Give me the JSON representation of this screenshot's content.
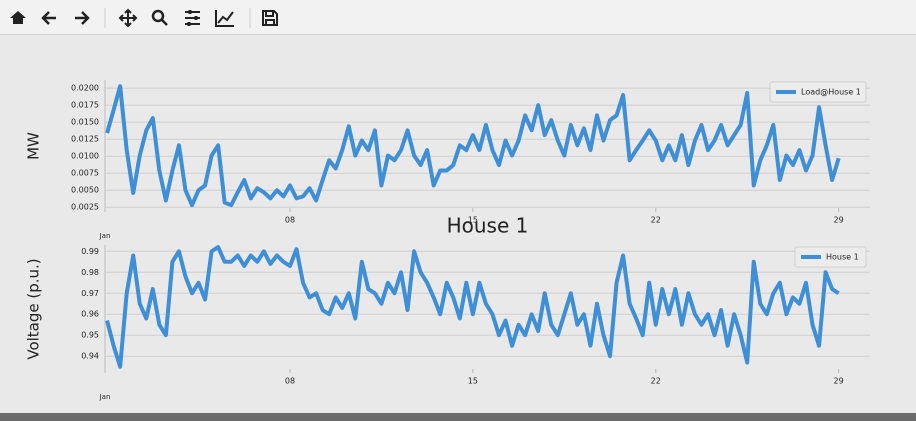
{
  "chart_data": [
    {
      "type": "line",
      "ylabel": "MW",
      "x_offset_text": "Jan",
      "legend": "upper right",
      "grid": true,
      "xlim": [
        0.92,
        30.2
      ],
      "xticks": [
        {
          "value": 8,
          "label": "08"
        },
        15,
        22,
        29
      ],
      "ylim": [
        0.0018,
        0.0212
      ],
      "yticks": [
        0.0025,
        {
          "value": 0.005,
          "label": "0.0050"
        },
        0.0075,
        {
          "value": 0.01,
          "label": "0.0100"
        },
        0.0125,
        {
          "value": 0.015,
          "label": "0.0150"
        },
        0.0175,
        {
          "value": 0.02,
          "label": "0.0200"
        }
      ],
      "x": [
        1,
        1.25,
        1.5,
        1.75,
        2,
        2.25,
        2.5,
        2.75,
        3,
        3.25,
        3.5,
        3.75,
        4,
        4.25,
        4.5,
        4.75,
        5,
        5.25,
        5.5,
        5.75,
        6,
        6.25,
        6.5,
        6.75,
        7,
        7.25,
        7.5,
        7.75,
        8,
        8.25,
        8.5,
        8.75,
        9,
        9.25,
        9.5,
        9.75,
        10,
        10.25,
        10.5,
        10.75,
        11,
        11.25,
        11.5,
        11.75,
        12,
        12.25,
        12.5,
        12.75,
        13,
        13.25,
        13.5,
        13.75,
        14,
        14.25,
        14.5,
        14.75,
        15,
        15.25,
        15.5,
        15.75,
        16,
        16.25,
        16.5,
        16.75,
        17,
        17.25,
        17.5,
        17.75,
        18,
        18.25,
        18.5,
        18.75,
        19,
        19.25,
        19.5,
        19.75,
        20,
        20.25,
        20.5,
        20.75,
        21,
        21.25,
        21.5,
        21.75,
        22,
        22.25,
        22.5,
        22.75,
        23,
        23.25,
        23.5,
        23.75,
        24,
        24.25,
        24.5,
        24.75,
        25,
        25.25,
        25.5,
        25.75,
        26,
        26.25,
        26.5,
        26.75,
        27,
        27.25,
        27.5,
        27.75,
        28,
        28.25,
        28.5,
        28.75,
        29
      ],
      "series": [
        {
          "name": "Load@House 1",
          "color": "#3f8fd6",
          "values": [
            0.0134,
            0.0168,
            0.0203,
            0.0109,
            0.0046,
            0.0101,
            0.0138,
            0.0156,
            0.0079,
            0.0035,
            0.0079,
            0.0116,
            0.005,
            0.0028,
            0.005,
            0.0057,
            0.0101,
            0.0116,
            0.0032,
            0.0028,
            0.0047,
            0.0065,
            0.0038,
            0.0053,
            0.0047,
            0.0038,
            0.005,
            0.0041,
            0.0057,
            0.0038,
            0.0041,
            0.0053,
            0.0035,
            0.0065,
            0.0094,
            0.0082,
            0.0109,
            0.0144,
            0.0101,
            0.0123,
            0.0109,
            0.0138,
            0.0057,
            0.0101,
            0.0094,
            0.0109,
            0.0138,
            0.0101,
            0.0087,
            0.0109,
            0.0057,
            0.0079,
            0.0079,
            0.0087,
            0.0116,
            0.0109,
            0.0131,
            0.0109,
            0.0146,
            0.0109,
            0.0087,
            0.0123,
            0.0101,
            0.0123,
            0.016,
            0.0138,
            0.0175,
            0.0131,
            0.0153,
            0.0123,
            0.0101,
            0.0146,
            0.0116,
            0.0141,
            0.0109,
            0.016,
            0.0123,
            0.0153,
            0.016,
            0.019,
            0.0094,
            0.0109,
            0.0123,
            0.0138,
            0.0123,
            0.0094,
            0.0116,
            0.0094,
            0.0131,
            0.0087,
            0.0123,
            0.0146,
            0.0109,
            0.0123,
            0.0146,
            0.0116,
            0.0131,
            0.0146,
            0.0193,
            0.0057,
            0.0094,
            0.0116,
            0.0146,
            0.0065,
            0.0101,
            0.0087,
            0.0109,
            0.0079,
            0.0101,
            0.0172,
            0.0116,
            0.0065,
            0.0097
          ]
        }
      ]
    },
    {
      "type": "line",
      "title": "House 1",
      "ylabel": "Voltage (p.u.)",
      "x_offset_text": "Jan",
      "legend": "upper right",
      "grid": true,
      "xlim": [
        0.92,
        30.2
      ],
      "xticks": [
        {
          "value": 8,
          "label": "08"
        },
        15,
        22,
        29
      ],
      "ylim": [
        0.932,
        0.993
      ],
      "yticks": [
        0.94,
        0.95,
        0.96,
        0.97,
        0.98,
        0.99
      ],
      "x": [
        1,
        1.25,
        1.5,
        1.75,
        2,
        2.25,
        2.5,
        2.75,
        3,
        3.25,
        3.5,
        3.75,
        4,
        4.25,
        4.5,
        4.75,
        5,
        5.25,
        5.5,
        5.75,
        6,
        6.25,
        6.5,
        6.75,
        7,
        7.25,
        7.5,
        7.75,
        8,
        8.25,
        8.5,
        8.75,
        9,
        9.25,
        9.5,
        9.75,
        10,
        10.25,
        10.5,
        10.75,
        11,
        11.25,
        11.5,
        11.75,
        12,
        12.25,
        12.5,
        12.75,
        13,
        13.25,
        13.5,
        13.75,
        14,
        14.25,
        14.5,
        14.75,
        15,
        15.25,
        15.5,
        15.75,
        16,
        16.25,
        16.5,
        16.75,
        17,
        17.25,
        17.5,
        17.75,
        18,
        18.25,
        18.5,
        18.75,
        19,
        19.25,
        19.5,
        19.75,
        20,
        20.25,
        20.5,
        20.75,
        21,
        21.25,
        21.5,
        21.75,
        22,
        22.25,
        22.5,
        22.75,
        23,
        23.25,
        23.5,
        23.75,
        24,
        24.25,
        24.5,
        24.75,
        25,
        25.25,
        25.5,
        25.75,
        26,
        26.25,
        26.5,
        26.75,
        27,
        27.25,
        27.5,
        27.75,
        28,
        28.25,
        28.5,
        28.75,
        29
      ],
      "series": [
        {
          "name": "House 1",
          "color": "#3f8fd6",
          "values": [
            0.957,
            0.945,
            0.935,
            0.97,
            0.988,
            0.965,
            0.958,
            0.972,
            0.955,
            0.95,
            0.985,
            0.99,
            0.978,
            0.97,
            0.975,
            0.967,
            0.99,
            0.992,
            0.985,
            0.985,
            0.988,
            0.983,
            0.988,
            0.985,
            0.99,
            0.984,
            0.988,
            0.985,
            0.983,
            0.991,
            0.975,
            0.968,
            0.97,
            0.962,
            0.96,
            0.968,
            0.963,
            0.97,
            0.958,
            0.985,
            0.972,
            0.97,
            0.965,
            0.975,
            0.97,
            0.98,
            0.962,
            0.99,
            0.98,
            0.975,
            0.968,
            0.96,
            0.975,
            0.968,
            0.958,
            0.975,
            0.96,
            0.975,
            0.965,
            0.96,
            0.95,
            0.957,
            0.945,
            0.955,
            0.95,
            0.96,
            0.952,
            0.97,
            0.955,
            0.95,
            0.96,
            0.97,
            0.955,
            0.96,
            0.945,
            0.965,
            0.95,
            0.94,
            0.975,
            0.988,
            0.965,
            0.958,
            0.95,
            0.975,
            0.955,
            0.972,
            0.96,
            0.972,
            0.955,
            0.97,
            0.96,
            0.955,
            0.96,
            0.95,
            0.962,
            0.945,
            0.96,
            0.95,
            0.937,
            0.985,
            0.965,
            0.96,
            0.97,
            0.975,
            0.96,
            0.968,
            0.965,
            0.975,
            0.955,
            0.945,
            0.98,
            0.972,
            0.97
          ]
        }
      ]
    }
  ]
}
